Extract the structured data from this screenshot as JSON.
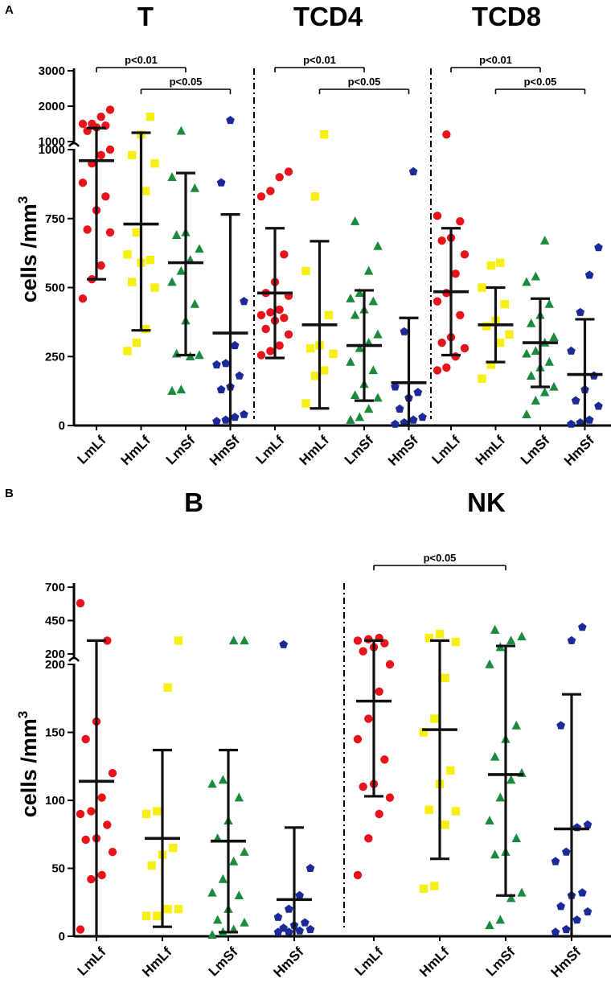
{
  "colors": {
    "LmLf": "#e8141c",
    "HmLf": "#f7ee12",
    "LmSf": "#1a8a3c",
    "HmSf": "#1c2a99",
    "bar": "#111111"
  },
  "marker_shapes": {
    "LmLf": "circle",
    "HmLf": "square",
    "LmSf": "triangle",
    "HmSf": "pentagon"
  },
  "chart_data": [
    {
      "panel": "A",
      "type": "scatter",
      "ylabel": "cells /mm3",
      "ylabel_main": "cells /mm",
      "ylabel_sup": "3",
      "yticks": [
        0,
        250,
        500,
        750,
        1000
      ],
      "yticks_upper": [
        1000,
        2000,
        3000
      ],
      "y_break": [
        1000,
        1000
      ],
      "ylim": [
        0,
        3000
      ],
      "groups": [
        {
          "title": "T",
          "categories": [
            "LmLf",
            "HmLf",
            "LmSf",
            "HmSf"
          ],
          "series": [
            {
              "name": "LmLf",
              "values": [
                460,
                530,
                580,
                700,
                710,
                780,
                830,
                880,
                950,
                980,
                1000,
                1300,
                1400,
                1450,
                1500,
                1500,
                1700,
                1900
              ],
              "mean": 960,
              "sd_low": 530,
              "sd_high": 1380
            },
            {
              "name": "HmLf",
              "values": [
                270,
                300,
                350,
                500,
                520,
                590,
                600,
                620,
                700,
                850,
                950,
                980,
                1200,
                1700
              ],
              "mean": 730,
              "sd_low": 345,
              "sd_high": 1250
            },
            {
              "name": "LmSf",
              "values": [
                125,
                130,
                250,
                255,
                260,
                380,
                440,
                520,
                560,
                600,
                640,
                690,
                700,
                860,
                900,
                1300
              ],
              "mean": 590,
              "sd_low": 255,
              "sd_high": 915
            },
            {
              "name": "HmSf",
              "values": [
                15,
                20,
                30,
                40,
                130,
                140,
                180,
                220,
                225,
                290,
                450,
                880,
                1600
              ],
              "mean": 335,
              "sd_low": 0,
              "sd_high": 765
            }
          ],
          "significance": [
            {
              "from": "LmLf",
              "to": "LmSf",
              "label": "p<0.01"
            },
            {
              "from": "HmLf",
              "to": "HmSf",
              "label": "p<0.05"
            }
          ]
        },
        {
          "title": "TCD4",
          "categories": [
            "LmLf",
            "HmLf",
            "LmSf",
            "HmSf"
          ],
          "series": [
            {
              "name": "LmLf",
              "values": [
                255,
                270,
                290,
                330,
                350,
                380,
                390,
                400,
                410,
                420,
                470,
                480,
                520,
                620,
                830,
                850,
                900,
                920
              ],
              "mean": 480,
              "sd_low": 245,
              "sd_high": 715
            },
            {
              "name": "HmLf",
              "values": [
                80,
                180,
                200,
                260,
                280,
                290,
                400,
                560,
                830,
                1200
              ],
              "mean": 365,
              "sd_low": 62,
              "sd_high": 668
            },
            {
              "name": "LmSf",
              "values": [
                20,
                30,
                60,
                100,
                110,
                150,
                200,
                230,
                280,
                300,
                330,
                400,
                420,
                450,
                460,
                480,
                560,
                650,
                740
              ],
              "mean": 290,
              "sd_low": 90,
              "sd_high": 490
            },
            {
              "name": "HmSf",
              "values": [
                5,
                10,
                20,
                30,
                60,
                100,
                120,
                140,
                340,
                920
              ],
              "mean": 155,
              "sd_low": 0,
              "sd_high": 390
            }
          ],
          "significance": [
            {
              "from": "LmLf",
              "to": "LmSf",
              "label": "p<0.01"
            },
            {
              "from": "HmLf",
              "to": "HmSf",
              "label": "p<0.05"
            }
          ]
        },
        {
          "title": "TCD8",
          "categories": [
            "LmLf",
            "HmLf",
            "LmSf",
            "HmSf"
          ],
          "series": [
            {
              "name": "LmLf",
              "values": [
                200,
                210,
                250,
                280,
                300,
                320,
                400,
                450,
                480,
                550,
                620,
                670,
                680,
                740,
                760,
                1200
              ],
              "mean": 485,
              "sd_low": 255,
              "sd_high": 715
            },
            {
              "name": "HmLf",
              "values": [
                170,
                220,
                300,
                330,
                360,
                380,
                440,
                500,
                580,
                590
              ],
              "mean": 365,
              "sd_low": 230,
              "sd_high": 500
            },
            {
              "name": "LmSf",
              "values": [
                40,
                90,
                120,
                140,
                180,
                210,
                230,
                260,
                270,
                300,
                320,
                370,
                400,
                440,
                520,
                540,
                670
              ],
              "mean": 300,
              "sd_low": 140,
              "sd_high": 460
            },
            {
              "name": "HmSf",
              "values": [
                5,
                10,
                20,
                70,
                90,
                130,
                180,
                270,
                410,
                545,
                645
              ],
              "mean": 185,
              "sd_low": 0,
              "sd_high": 385
            }
          ],
          "significance": [
            {
              "from": "LmLf",
              "to": "LmSf",
              "label": "p<0.01"
            },
            {
              "from": "HmLf",
              "to": "HmSf",
              "label": "p<0.05"
            }
          ]
        }
      ]
    },
    {
      "panel": "B",
      "type": "scatter",
      "ylabel": "cells /mm3",
      "ylabel_main": "cells /mm",
      "ylabel_sup": "3",
      "yticks": [
        0,
        50,
        100,
        150,
        200
      ],
      "yticks_upper": [
        200,
        450,
        700
      ],
      "y_break": [
        200,
        200
      ],
      "ylim": [
        0,
        700
      ],
      "groups": [
        {
          "title": "B",
          "categories": [
            "LmLf",
            "HmLf",
            "LmSf",
            "HmSf"
          ],
          "series": [
            {
              "name": "LmLf",
              "values": [
                5,
                42,
                45,
                62,
                71,
                72,
                82,
                90,
                92,
                102,
                120,
                145,
                158,
                300,
                580
              ],
              "mean": 114,
              "sd_low": 0,
              "sd_high": 300
            },
            {
              "name": "HmLf",
              "values": [
                15,
                15,
                20,
                20,
                52,
                60,
                65,
                90,
                92,
                183,
                300
              ],
              "mean": 72,
              "sd_low": 7,
              "sd_high": 137
            },
            {
              "name": "LmSf",
              "values": [
                1,
                3,
                5,
                10,
                12,
                20,
                30,
                32,
                42,
                55,
                62,
                72,
                85,
                102,
                112,
                115,
                300,
                300
              ],
              "mean": 70,
              "sd_low": 3,
              "sd_high": 137
            },
            {
              "name": "HmSf",
              "values": [
                3,
                3,
                4,
                5,
                6,
                8,
                10,
                14,
                20,
                30,
                50,
                270
              ],
              "mean": 27,
              "sd_low": 0,
              "sd_high": 80
            }
          ],
          "significance": []
        },
        {
          "title": "NK",
          "categories": [
            "LmLf",
            "HmLf",
            "LmSf",
            "HmSf"
          ],
          "series": [
            {
              "name": "LmLf",
              "values": [
                45,
                72,
                90,
                102,
                110,
                112,
                130,
                145,
                160,
                180,
                200,
                220,
                250,
                280,
                300,
                310,
                320
              ],
              "mean": 173,
              "sd_low": 103,
              "sd_high": 300
            },
            {
              "name": "HmLf",
              "values": [
                35,
                37,
                82,
                92,
                93,
                112,
                122,
                150,
                160,
                190,
                290,
                320,
                350
              ],
              "mean": 152,
              "sd_low": 57,
              "sd_high": 300
            },
            {
              "name": "LmSf",
              "values": [
                8,
                12,
                28,
                32,
                60,
                62,
                72,
                85,
                102,
                115,
                120,
                132,
                145,
                155,
                200,
                250,
                300,
                330,
                380
              ],
              "mean": 119,
              "sd_low": 30,
              "sd_high": 260
            },
            {
              "name": "HmSf",
              "values": [
                3,
                5,
                12,
                18,
                22,
                30,
                32,
                55,
                62,
                80,
                82,
                155,
                300,
                400
              ],
              "mean": 79,
              "sd_low": 0,
              "sd_high": 178
            }
          ],
          "significance": [
            {
              "from": "LmLf",
              "to": "LmSf",
              "label": "p<0.05"
            }
          ]
        }
      ]
    }
  ]
}
